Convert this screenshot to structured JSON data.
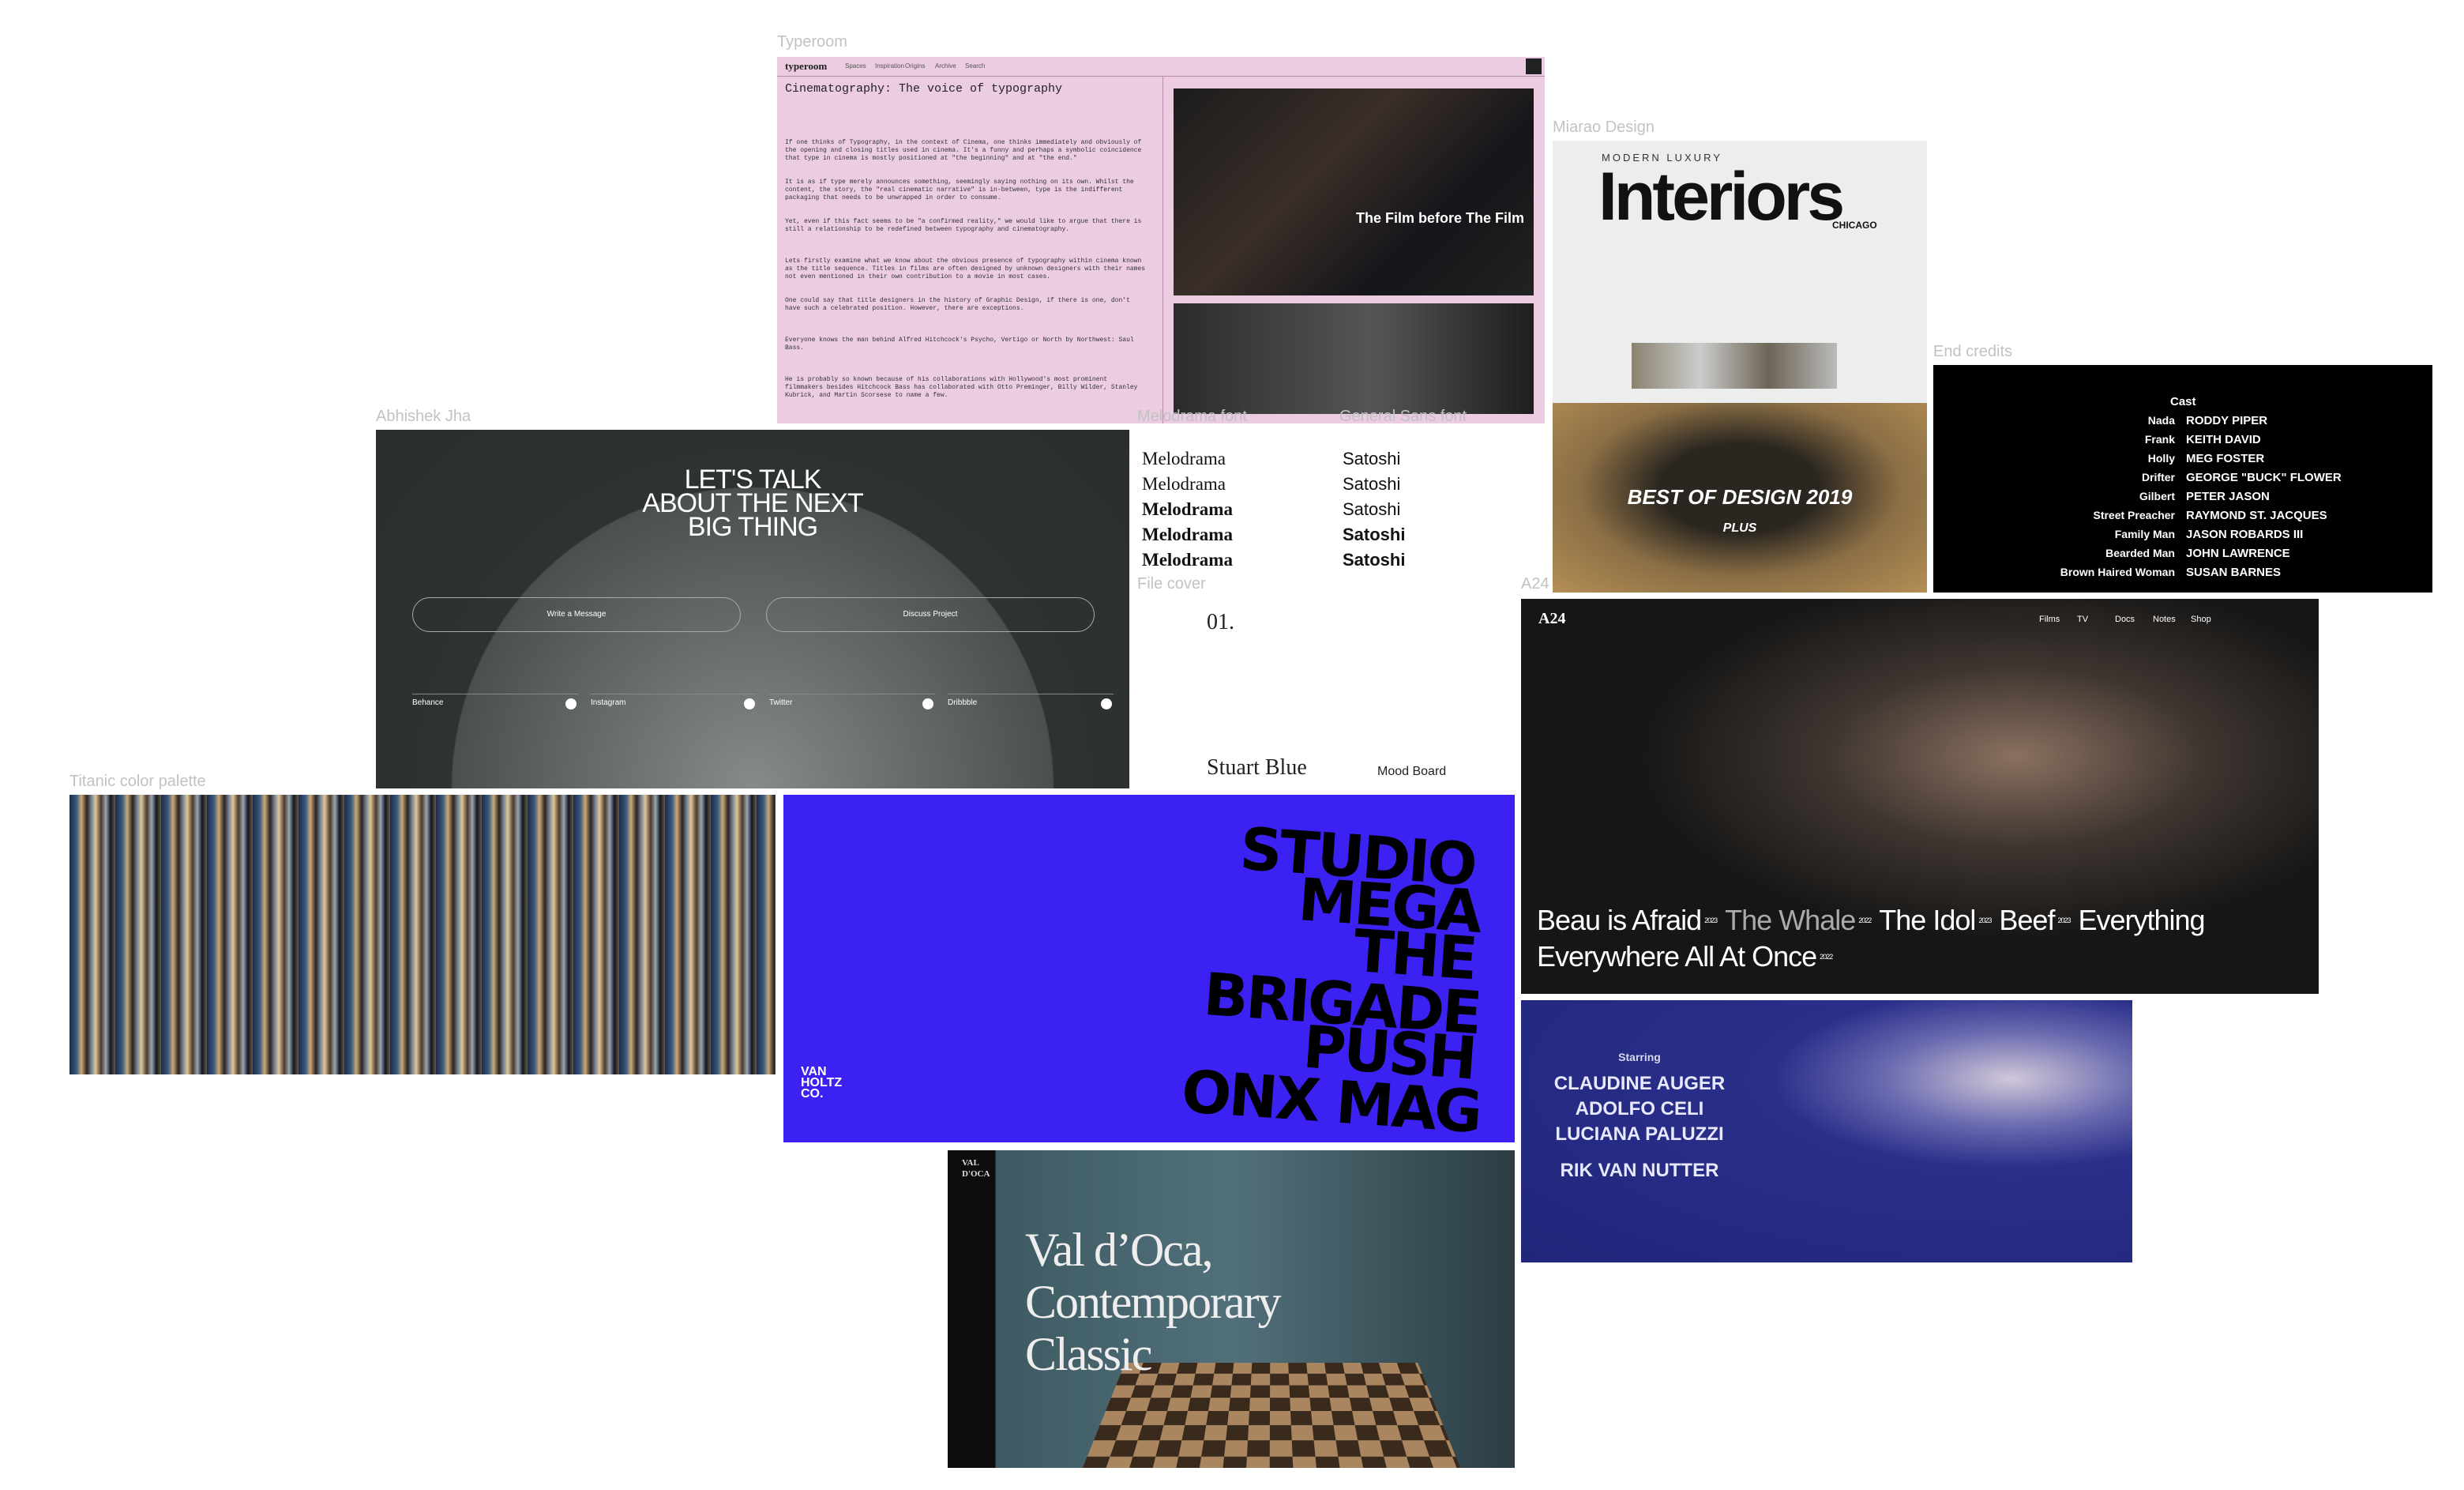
{
  "board": {
    "typeroom": {
      "label": "Typeroom",
      "logo": "typeroom",
      "nav": [
        "Spaces",
        "Inspiration",
        "Origins",
        "Archive",
        "Search"
      ],
      "title": "Cinematography: The voice of typography",
      "paragraphs": [
        "If one thinks of Typography, in the context of Cinema, one thinks immediately and obviously of the opening and closing titles used in cinema. It's a funny and perhaps a symbolic coincidence that type in cinema is mostly positioned at \"the beginning\" and at \"the end.\"",
        "It is as if type merely announces something, seemingly saying nothing on its own. Whilst the content, the story, the \"real cinematic narrative\" is in-between, type is the indifferent packaging that needs to be unwrapped in order to consume.",
        "Yet, even if this fact seems to be \"a confirmed reality,\" we would like to argue that there is still a relationship to be redefined between typography and cinematography.",
        "Lets firstly examine what we know about the obvious presence of typography within cinema known as the title sequence. Titles in films are often designed by unknown designers with their names not even mentioned in their own contribution to a movie in most cases.",
        "One could say that title designers in the history of Graphic Design, if there is one, don't have such a celebrated position. However, there are exceptions.",
        "Everyone knows the man behind Alfred Hitchcock's Psycho, Vertigo or North by Northwest: Saul Bass.",
        "He is probably so known because of his collaborations with Hollywood's most prominent filmmakers besides Hitchcock Bass has collaborated with Otto Preminger, Billy Wilder, Stanley Kubrick, and Martin Scorsese to name a few."
      ],
      "video_title": "The Film before The Film"
    },
    "miarao": {
      "label": "Miarao Design",
      "brand_top": "MODERN LUXURY",
      "brand": "Interiors",
      "city": "CHICAGO",
      "headline": "BEST OF DESIGN 2019",
      "sub": "PLUS"
    },
    "end_credits": {
      "label": "End credits",
      "heading": "Cast",
      "cast": [
        [
          "Nada",
          "RODDY PIPER"
        ],
        [
          "Frank",
          "KEITH DAVID"
        ],
        [
          "Holly",
          "MEG FOSTER"
        ],
        [
          "Drifter",
          "GEORGE \"BUCK\" FLOWER"
        ],
        [
          "Gilbert",
          "PETER JASON"
        ],
        [
          "Street Preacher",
          "RAYMOND ST. JACQUES"
        ],
        [
          "Family Man",
          "JASON ROBARDS III"
        ],
        [
          "Bearded Man",
          "JOHN LAWRENCE"
        ],
        [
          "Brown Haired Woman",
          "SUSAN BARNES"
        ]
      ]
    },
    "abhishek": {
      "label": "Abhishek Jha",
      "headline": [
        "LET'S TALK",
        "ABOUT THE NEXT",
        "BIG THING"
      ],
      "buttons": [
        "Write a Message",
        "Discuss Project"
      ],
      "links": [
        "Behance",
        "Instagram",
        "Twitter",
        "Dribbble"
      ]
    },
    "melodrama": {
      "label": "Melodrama font",
      "samples": [
        "Melodrama",
        "Melodrama",
        "Melodrama",
        "Melodrama",
        "Melodrama"
      ]
    },
    "general_sans": {
      "label": "General Sans font",
      "samples": [
        "Satoshi",
        "Satoshi",
        "Satoshi",
        "Satoshi",
        "Satoshi"
      ]
    },
    "file_cover": {
      "label": "File cover",
      "number": "01."
    },
    "stuart": {
      "name": "Stuart Blue",
      "tag": "Mood Board"
    },
    "a24": {
      "label": "A24",
      "logo": "A24",
      "nav": [
        "Films",
        "TV",
        "Docs",
        "Notes",
        "Shop"
      ],
      "films": [
        {
          "title": "Beau is Afraid",
          "year": "2023"
        },
        {
          "title": "The Whale",
          "year": "2022"
        },
        {
          "title": "The Idol",
          "year": "2023"
        },
        {
          "title": "Beef",
          "year": "2023"
        },
        {
          "title": "Everything Everywhere All At Once",
          "year": "2022"
        }
      ]
    },
    "titanic": {
      "label": "Titanic color palette"
    },
    "van_holtz": {
      "words": [
        "STUDIO",
        "MEGA",
        "THE",
        "BRIGADE",
        "PUSH",
        "ONX MAG"
      ],
      "logo": [
        "VAN",
        "HOLTZ",
        "CO."
      ]
    },
    "val_doca": {
      "logo": [
        "VAL",
        "D'OCA"
      ],
      "headline": [
        "Val d’Oca,",
        "Contemporary",
        "Classic"
      ]
    },
    "starring": {
      "heading": "Starring",
      "names": [
        "CLAUDINE AUGER",
        "ADOLFO CELI",
        "LUCIANA PALUZZI",
        "RIK VAN NUTTER"
      ]
    }
  }
}
